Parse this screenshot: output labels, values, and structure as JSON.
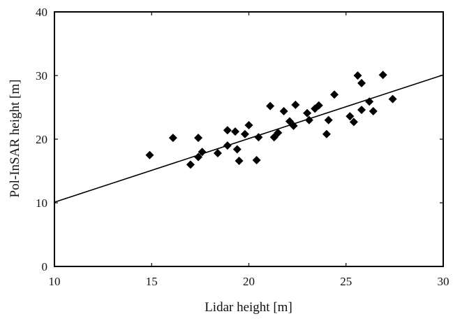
{
  "chart_data": {
    "type": "scatter",
    "title": "",
    "xlabel": "Lidar height [m]",
    "ylabel": "Pol-InSAR height [m]",
    "xlim": [
      10,
      30
    ],
    "ylim": [
      0,
      40
    ],
    "xticks": [
      10,
      15,
      20,
      25,
      30
    ],
    "yticks": [
      0,
      10,
      20,
      30,
      40
    ],
    "grid": false,
    "legend": "none",
    "marker": "diamond",
    "marker_color": "#000000",
    "series": [
      {
        "points": [
          [
            14.9,
            17.5
          ],
          [
            16.1,
            20.2
          ],
          [
            17.0,
            16.0
          ],
          [
            17.4,
            20.2
          ],
          [
            17.4,
            17.2
          ],
          [
            17.6,
            18.0
          ],
          [
            18.4,
            17.8
          ],
          [
            18.9,
            19.0
          ],
          [
            18.9,
            21.4
          ],
          [
            19.3,
            21.2
          ],
          [
            19.4,
            18.4
          ],
          [
            19.5,
            16.6
          ],
          [
            19.8,
            20.8
          ],
          [
            20.0,
            22.2
          ],
          [
            20.4,
            16.7
          ],
          [
            20.5,
            20.3
          ],
          [
            21.1,
            25.2
          ],
          [
            21.3,
            20.3
          ],
          [
            21.5,
            21.0
          ],
          [
            21.8,
            24.4
          ],
          [
            22.1,
            22.8
          ],
          [
            22.3,
            22.1
          ],
          [
            22.4,
            25.4
          ],
          [
            23.0,
            24.1
          ],
          [
            23.1,
            23.0
          ],
          [
            23.4,
            24.8
          ],
          [
            23.6,
            25.3
          ],
          [
            24.0,
            20.8
          ],
          [
            24.1,
            23.0
          ],
          [
            24.4,
            27.0
          ],
          [
            25.2,
            23.6
          ],
          [
            25.4,
            22.7
          ],
          [
            25.6,
            30.0
          ],
          [
            25.8,
            28.8
          ],
          [
            25.8,
            24.6
          ],
          [
            26.2,
            25.9
          ],
          [
            26.4,
            24.4
          ],
          [
            26.9,
            30.1
          ],
          [
            27.4,
            26.3
          ]
        ]
      }
    ],
    "fit_line": {
      "x": [
        10,
        30
      ],
      "y": [
        10.1,
        30.1
      ],
      "color": "#000000"
    }
  }
}
